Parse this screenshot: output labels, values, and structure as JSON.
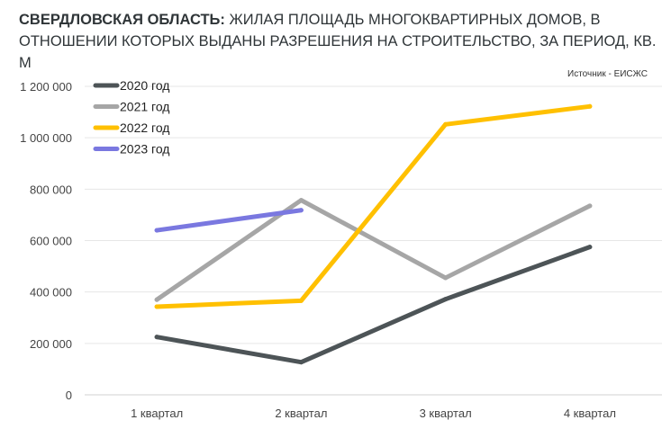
{
  "header": {
    "title_bold": "СВЕРДЛОВСКАЯ ОБЛАСТЬ:",
    "title_rest": " ЖИЛАЯ ПЛОЩАДЬ МНОГОКВАРТИРНЫХ ДОМОВ, В ОТНОШЕНИИ КОТОРЫХ ВЫДАНЫ РАЗРЕШЕНИЯ НА СТРОИТЕЛЬСТВО, ЗА ПЕРИОД, КВ. М",
    "source": "Источник - ЕИСЖС"
  },
  "chart_data": {
    "type": "line",
    "title": "СВЕРДЛОВСКАЯ ОБЛАСТЬ: ЖИЛАЯ ПЛОЩАДЬ МНОГОКВАРТИРНЫХ ДОМОВ, В ОТНОШЕНИИ КОТОРЫХ ВЫДАНЫ РАЗРЕШЕНИЯ НА СТРОИТЕЛЬСТВО, ЗА ПЕРИОД, КВ. М",
    "xlabel": "",
    "ylabel": "",
    "categories": [
      "1 квартал",
      "2 квартал",
      "3 квартал",
      "4 квартал"
    ],
    "ylim": [
      0,
      1200000
    ],
    "yticks": [
      0,
      200000,
      400000,
      600000,
      800000,
      1000000,
      1200000
    ],
    "ytick_labels": [
      "0",
      "200 000",
      "400 000",
      "600 000",
      "800 000",
      "1 000 000",
      "1 200 000"
    ],
    "grid": "horizontal",
    "legend_position": "top-left",
    "series": [
      {
        "name": "2020 год",
        "color": "#4d5457",
        "values": [
          225000,
          127000,
          372000,
          575000
        ]
      },
      {
        "name": "2021 год",
        "color": "#a6a6a6",
        "values": [
          370000,
          757000,
          455000,
          735000
        ]
      },
      {
        "name": "2022 год",
        "color": "#ffc000",
        "values": [
          343000,
          366000,
          1052000,
          1122000
        ]
      },
      {
        "name": "2023 год",
        "color": "#7a78e0",
        "values": [
          640000,
          718000,
          null,
          null
        ]
      }
    ]
  }
}
